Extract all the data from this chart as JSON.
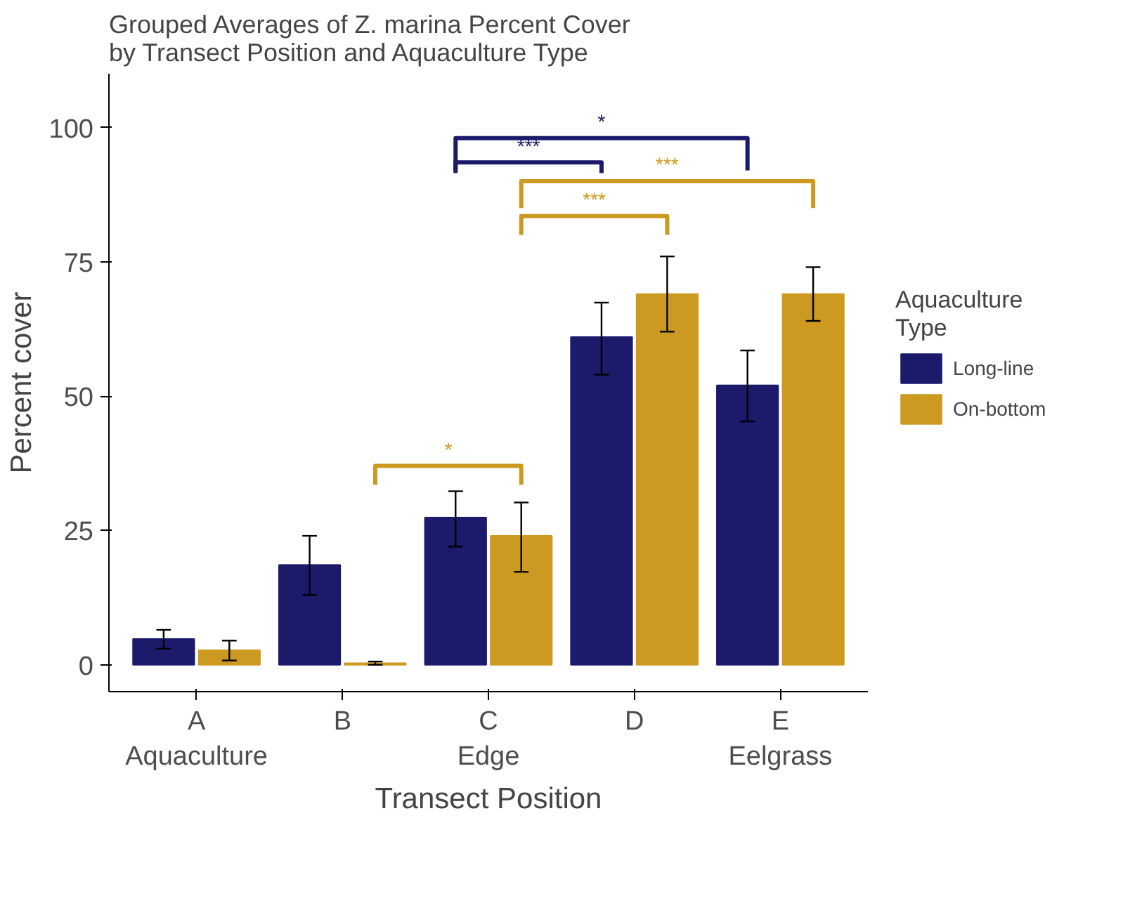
{
  "chart_data": {
    "type": "bar",
    "title": "Grouped Averages of Z. marina Percent Cover\nby Transect Position and Aquaculture Type",
    "xlabel": "Transect Position",
    "ylabel": "Percent cover",
    "legend_title": "Aquaculture\nType",
    "categories": [
      "A\nAquaculture",
      "B",
      "C\nEdge",
      "D",
      "E\nEelgrass"
    ],
    "series": [
      {
        "name": "Long-line",
        "color": "#1b1a6b",
        "values": [
          4.8,
          18.6,
          27.4,
          61,
          52
        ],
        "errors": [
          [
            3,
            6.5
          ],
          [
            13,
            24
          ],
          [
            22,
            32.3
          ],
          [
            54,
            67.4
          ],
          [
            45.3,
            58.5
          ]
        ]
      },
      {
        "name": "On-bottom",
        "color": "#cc9a20",
        "values": [
          2.7,
          0.3,
          24,
          69,
          69
        ],
        "errors": [
          [
            0.8,
            4.5
          ],
          [
            0,
            0.6
          ],
          [
            17.3,
            30.2
          ],
          [
            62,
            76
          ],
          [
            64,
            74
          ]
        ]
      }
    ],
    "annotations": [
      "*",
      "***",
      "***",
      "***",
      "*"
    ],
    "ylim": [
      -5,
      110
    ],
    "yticks": [
      0,
      25,
      50,
      75,
      100
    ],
    "grid": false,
    "legend": "right"
  }
}
